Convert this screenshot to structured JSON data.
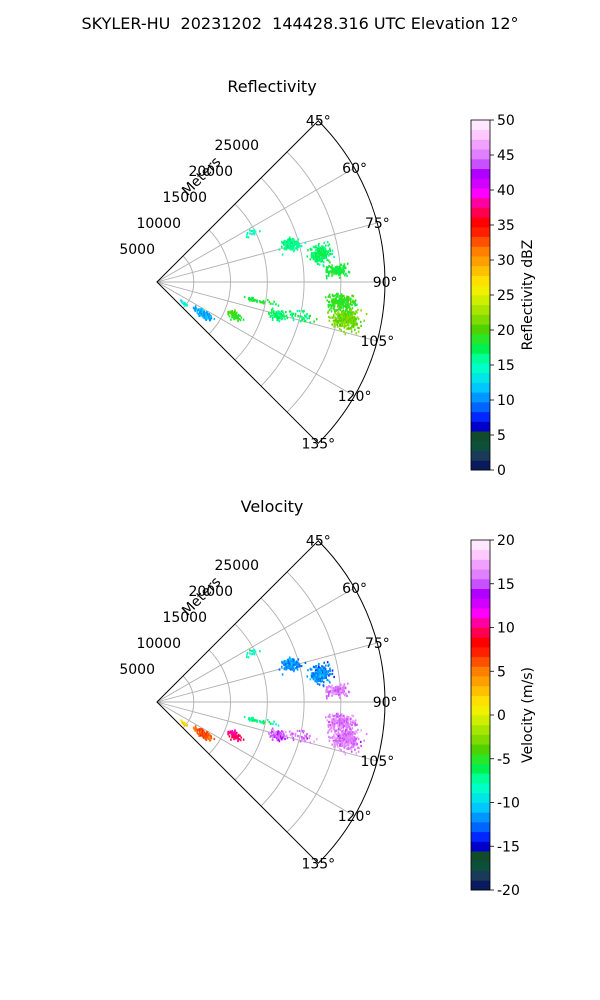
{
  "figure": {
    "suptitle": "SKYLER-HU  20231202  144428.316 UTC Elevation 12°"
  },
  "chart_data": [
    {
      "type": "polar-sector",
      "title": "Reflectivity",
      "radial_axis_label": "Meters",
      "radial_ticks": [
        5000,
        10000,
        15000,
        20000,
        25000
      ],
      "radial_limit": [
        0,
        31000
      ],
      "angle_ticks": [
        "45°",
        "60°",
        "75°",
        "90°",
        "105°",
        "120°",
        "135°"
      ],
      "angle_range_deg": [
        45,
        135
      ],
      "grid": true,
      "colorbar": {
        "label": "Reflectivity dBZ",
        "min": 0,
        "max": 50,
        "ticks": [
          0,
          5,
          10,
          15,
          20,
          25,
          30,
          35,
          40,
          45,
          50
        ],
        "colors": [
          "#0a1a5c",
          "#1a3a5a",
          "#0c4f3a",
          "#124a2c",
          "#0000c8",
          "#0028ff",
          "#0064ff",
          "#0096ff",
          "#00c8ff",
          "#00e6e6",
          "#00ffc8",
          "#00ff96",
          "#00f050",
          "#28e628",
          "#50d200",
          "#80dc00",
          "#a8e600",
          "#cfee00",
          "#f0f000",
          "#ffe000",
          "#ffc000",
          "#ffa000",
          "#ff8000",
          "#ff5000",
          "#ff2000",
          "#ff0000",
          "#ff0050",
          "#ff00a0",
          "#ff00ff",
          "#d200ff",
          "#b000ff",
          "#c850ff",
          "#e080ff",
          "#f0a0ff",
          "#ffc8ff",
          "#ffe8ff"
        ]
      },
      "echo_clusters": [
        {
          "azimuth": 101,
          "range": 26000,
          "az_spread": 3,
          "range_spread": 2000,
          "value": 21,
          "density": 300
        },
        {
          "azimuth": 96,
          "range": 25000,
          "az_spread": 2.5,
          "range_spread": 1800,
          "value": 19,
          "density": 220
        },
        {
          "azimuth": 80,
          "range": 22500,
          "az_spread": 3,
          "range_spread": 1500,
          "value": 17,
          "density": 180
        },
        {
          "azimuth": 74,
          "range": 19000,
          "az_spread": 2.5,
          "range_spread": 1200,
          "value": 16,
          "density": 130
        },
        {
          "azimuth": 86,
          "range": 24500,
          "az_spread": 2,
          "range_spread": 1500,
          "value": 18,
          "density": 120
        },
        {
          "azimuth": 105,
          "range": 17000,
          "az_spread": 2,
          "range_spread": 1200,
          "value": 17,
          "density": 90
        },
        {
          "azimuth": 113,
          "range": 11500,
          "az_spread": 2.5,
          "range_spread": 1000,
          "value": 19,
          "density": 80
        },
        {
          "azimuth": 124,
          "range": 7500,
          "az_spread": 3,
          "range_spread": 1200,
          "value": 11,
          "density": 130
        },
        {
          "azimuth": 128,
          "range": 4500,
          "az_spread": 2,
          "range_spread": 600,
          "value": 14,
          "density": 20
        },
        {
          "azimuth": 100,
          "range": 14000,
          "az_spread": 1,
          "range_spread": 2500,
          "value": 18,
          "density": 40
        },
        {
          "azimuth": 103,
          "range": 20000,
          "az_spread": 2,
          "range_spread": 2000,
          "value": 17,
          "density": 40
        },
        {
          "azimuth": 62,
          "range": 14500,
          "az_spread": 2,
          "range_spread": 800,
          "value": 15,
          "density": 15
        }
      ]
    },
    {
      "type": "polar-sector",
      "title": "Velocity",
      "radial_axis_label": "Meters",
      "radial_ticks": [
        5000,
        10000,
        15000,
        20000,
        25000
      ],
      "radial_limit": [
        0,
        31000
      ],
      "angle_ticks": [
        "45°",
        "60°",
        "75°",
        "90°",
        "105°",
        "120°",
        "135°"
      ],
      "angle_range_deg": [
        45,
        135
      ],
      "grid": true,
      "colorbar": {
        "label": "Velocity (m/s)",
        "min": -20,
        "max": 20,
        "ticks": [
          -20,
          -15,
          -10,
          -5,
          0,
          5,
          10,
          15,
          20
        ],
        "colors": [
          "#0a1a5c",
          "#1a3a5a",
          "#0c4f3a",
          "#124a2c",
          "#0000c8",
          "#0028ff",
          "#0064ff",
          "#0096ff",
          "#00c8ff",
          "#00e6e6",
          "#00ffc8",
          "#00ff96",
          "#00f050",
          "#28e628",
          "#50d200",
          "#80dc00",
          "#a8e600",
          "#cfee00",
          "#f0f000",
          "#ffe000",
          "#ffc000",
          "#ffa000",
          "#ff8000",
          "#ff5000",
          "#ff2000",
          "#ff0000",
          "#ff0050",
          "#ff00a0",
          "#ff00ff",
          "#d200ff",
          "#b000ff",
          "#c850ff",
          "#e080ff",
          "#f0a0ff",
          "#ffc8ff",
          "#ffe8ff"
        ]
      },
      "echo_clusters": [
        {
          "azimuth": 101,
          "range": 26000,
          "az_spread": 3,
          "range_spread": 2000,
          "value": 16,
          "density": 300
        },
        {
          "azimuth": 96,
          "range": 25000,
          "az_spread": 2.5,
          "range_spread": 1800,
          "value": 16,
          "density": 220
        },
        {
          "azimuth": 80,
          "range": 22500,
          "az_spread": 3,
          "range_spread": 1500,
          "value": -12,
          "density": 180
        },
        {
          "azimuth": 74,
          "range": 19000,
          "az_spread": 2.5,
          "range_spread": 1200,
          "value": -12,
          "density": 130
        },
        {
          "azimuth": 86,
          "range": 24500,
          "az_spread": 2,
          "range_spread": 1500,
          "value": 16,
          "density": 120
        },
        {
          "azimuth": 105,
          "range": 17000,
          "az_spread": 2,
          "range_spread": 1200,
          "value": 15,
          "density": 90
        },
        {
          "azimuth": 113,
          "range": 11500,
          "az_spread": 2.5,
          "range_spread": 1000,
          "value": 10,
          "density": 80
        },
        {
          "azimuth": 124,
          "range": 7500,
          "az_spread": 3,
          "range_spread": 1200,
          "value": 6,
          "density": 130
        },
        {
          "azimuth": 128,
          "range": 4500,
          "az_spread": 2,
          "range_spread": 600,
          "value": 2,
          "density": 20
        },
        {
          "azimuth": 100,
          "range": 14000,
          "az_spread": 1,
          "range_spread": 2500,
          "value": -7,
          "density": 40
        },
        {
          "azimuth": 103,
          "range": 20000,
          "az_spread": 2,
          "range_spread": 2000,
          "value": 16,
          "density": 40
        },
        {
          "azimuth": 62,
          "range": 14500,
          "az_spread": 2,
          "range_spread": 800,
          "value": -8,
          "density": 15
        }
      ]
    }
  ]
}
